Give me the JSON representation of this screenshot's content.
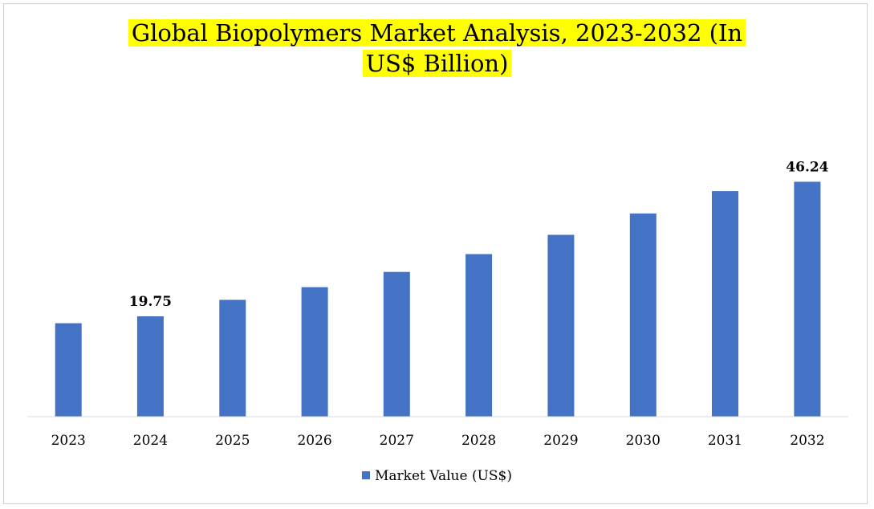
{
  "chart_data": {
    "type": "bar",
    "title_lines": [
      "Global Biopolymers Market Analysis, 2023-2032 (In",
      "US$ Billion)"
    ],
    "categories": [
      "2023",
      "2024",
      "2025",
      "2026",
      "2027",
      "2028",
      "2029",
      "2030",
      "2031",
      "2032"
    ],
    "series": [
      {
        "name": "Market Value (US$)",
        "values": [
          18.4,
          19.75,
          23.0,
          25.5,
          28.5,
          32.0,
          35.8,
          40.0,
          44.4,
          46.24
        ],
        "color": "#4472c4"
      }
    ],
    "data_labels": [
      {
        "index": 1,
        "text": "19.75"
      },
      {
        "index": 9,
        "text": "46.24"
      }
    ],
    "ylim": [
      0,
      52
    ],
    "title_highlight": "#ffff00",
    "grid": false,
    "legend_position": "bottom"
  }
}
